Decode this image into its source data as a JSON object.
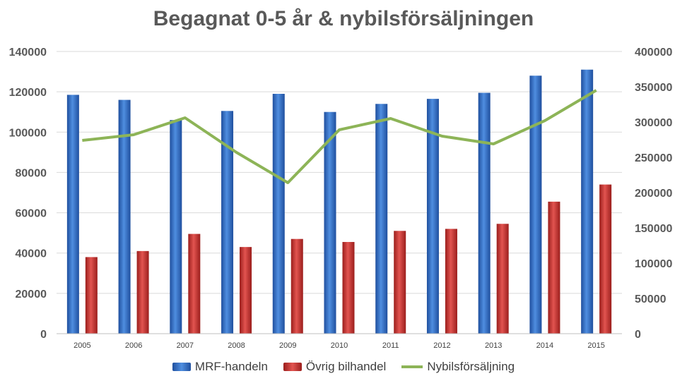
{
  "chart_data": {
    "type": "bar",
    "title": "Begagnat 0-5 år & nybilsförsäljningen",
    "categories": [
      "2005",
      "2006",
      "2007",
      "2008",
      "2009",
      "2010",
      "2011",
      "2012",
      "2013",
      "2014",
      "2015"
    ],
    "series": [
      {
        "name": "MRF-handeln",
        "type": "bar",
        "axis": "left",
        "color": "#3d78cf",
        "values": [
          118500,
          116000,
          106000,
          110500,
          119000,
          110000,
          114000,
          116500,
          119500,
          128000,
          131000
        ]
      },
      {
        "name": "Övrig bilhandel",
        "type": "bar",
        "axis": "left",
        "color": "#d23f3c",
        "values": [
          38000,
          41000,
          49500,
          43000,
          47000,
          45500,
          51000,
          52000,
          54500,
          65500,
          74000
        ]
      },
      {
        "name": "Nybilsförsäljning",
        "type": "line",
        "axis": "right",
        "color": "#8db457",
        "values": [
          274000,
          282000,
          306000,
          257000,
          214000,
          289000,
          305000,
          280000,
          269000,
          302000,
          345000
        ]
      }
    ],
    "y_left": {
      "min": 0,
      "max": 140000,
      "ticks": [
        "0",
        "20000",
        "40000",
        "60000",
        "80000",
        "100000",
        "120000",
        "140000"
      ]
    },
    "y_right": {
      "min": 0,
      "max": 400000,
      "ticks": [
        "0",
        "50000",
        "100000",
        "150000",
        "200000",
        "250000",
        "300000",
        "350000",
        "400000"
      ]
    },
    "grid": true,
    "legend_position": "bottom"
  }
}
